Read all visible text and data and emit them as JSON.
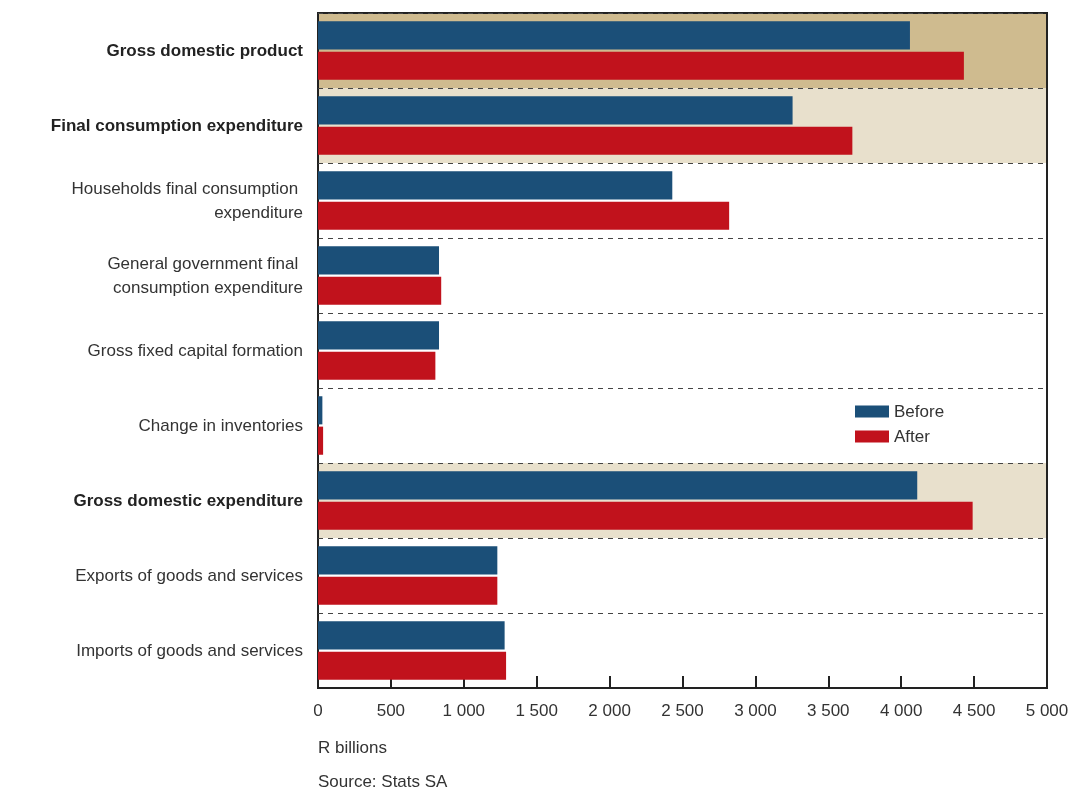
{
  "chart_data": {
    "type": "bar",
    "orientation": "horizontal",
    "categories": [
      "Gross domestic product",
      "Final consumption expenditure",
      "Households final consumption expenditure",
      "General government final consumption expenditure",
      "Gross fixed capital formation",
      "Change in inventories",
      "Gross domestic expenditure",
      "Exports of goods and services",
      "Imports of goods and services"
    ],
    "series": [
      {
        "name": "Before",
        "color": "#1b4f78",
        "values": [
          4060,
          3255,
          2430,
          830,
          830,
          30,
          4110,
          1230,
          1280
        ]
      },
      {
        "name": "After",
        "color": "#c1121c",
        "values": [
          4430,
          3665,
          2820,
          845,
          805,
          35,
          4490,
          1230,
          1290
        ]
      }
    ],
    "xlim": [
      0,
      5000
    ],
    "xticks": [
      0,
      500,
      {
        "value": 1000,
        "label": "1 000"
      },
      {
        "value": 1500,
        "label": "1 500"
      },
      {
        "value": 2000,
        "label": "2 000"
      },
      {
        "value": 2500,
        "label": "2 500"
      },
      {
        "value": 3000,
        "label": "3 000"
      },
      {
        "value": 3500,
        "label": "3 500"
      },
      {
        "value": 4000,
        "label": "4 000"
      },
      {
        "value": 4500,
        "label": "4 500"
      },
      {
        "value": 5000,
        "label": "5 000"
      }
    ],
    "xlabel": "R billions",
    "annotations": [
      "Source: Stats SA"
    ],
    "bands": [
      {
        "axis": "y",
        "from": "Gross domestic product",
        "to": "Gross domestic product",
        "color": "#cfbb8f"
      },
      {
        "axis": "y",
        "from": "Final consumption expenditure",
        "to": "Final consumption expenditure",
        "color": "#e8e0cc"
      },
      {
        "axis": "y",
        "from": "Gross domestic expenditure",
        "to": "Gross domestic expenditure",
        "color": "#e8e0cc"
      }
    ],
    "grid": "y",
    "legend": "right"
  }
}
